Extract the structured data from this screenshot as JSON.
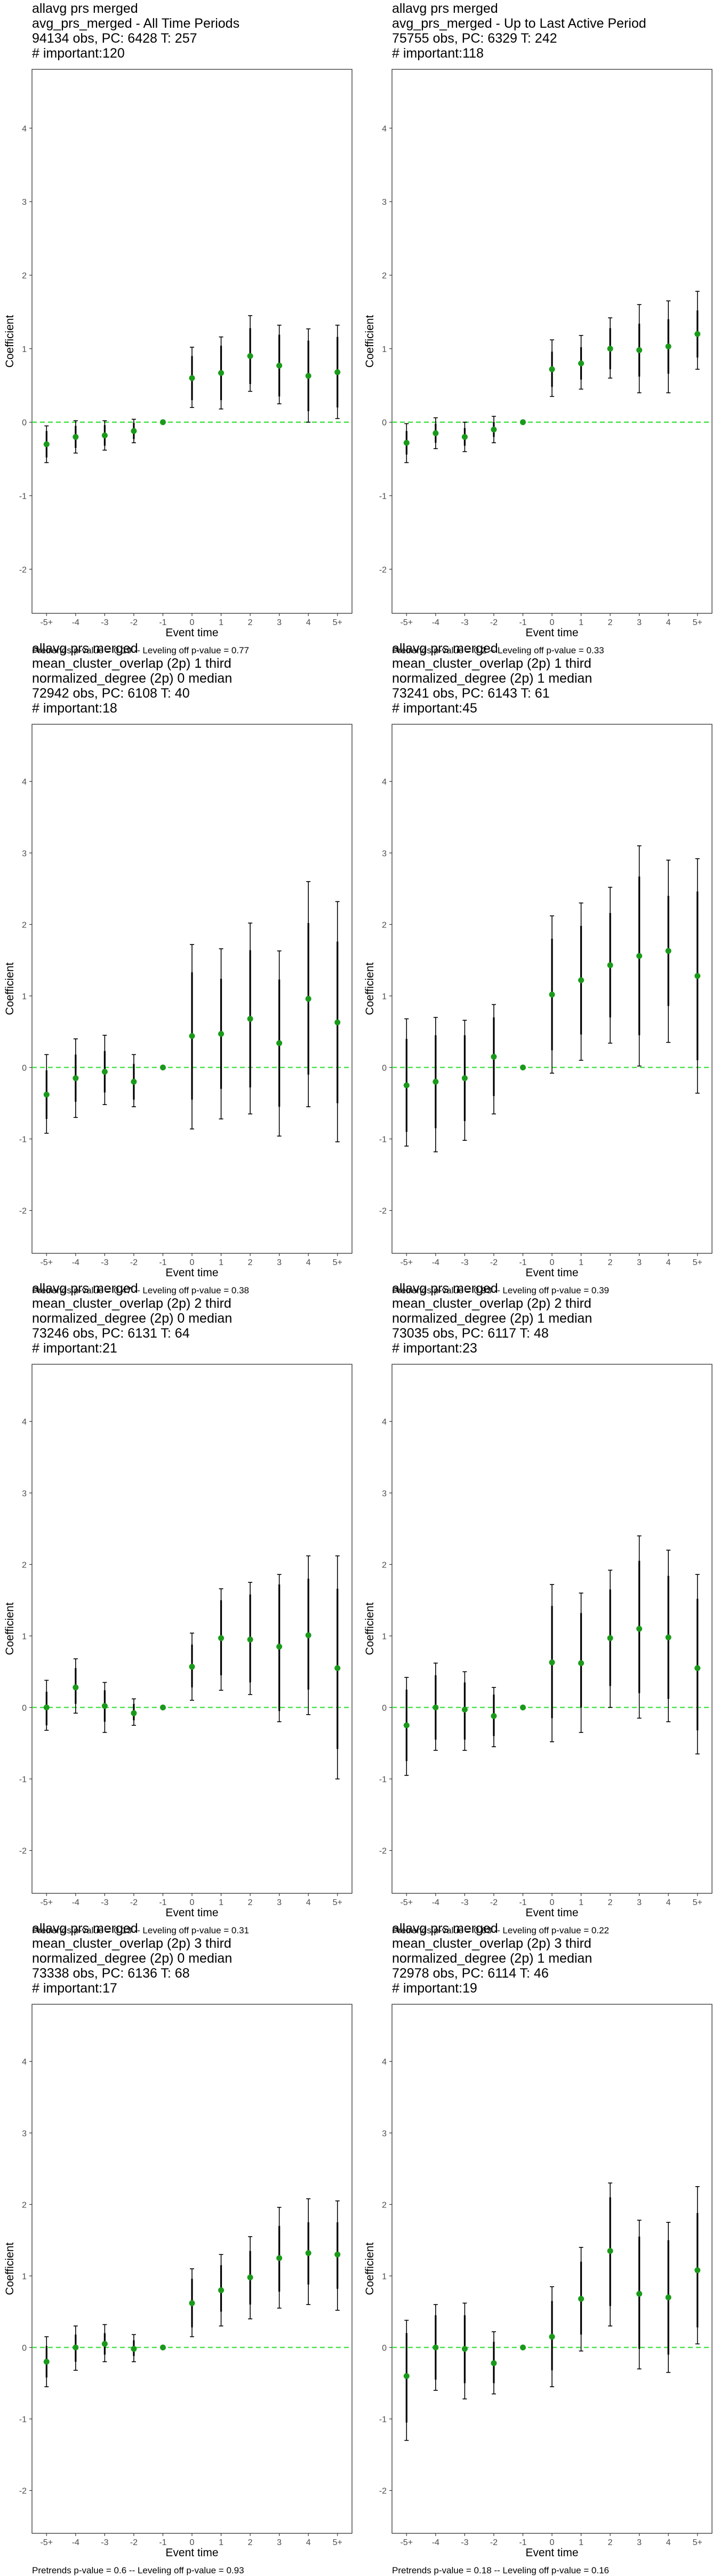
{
  "axis": {
    "xlabel": "Event time",
    "ylabel": "Coefficient",
    "categories": [
      "-5+",
      "-4",
      "-3",
      "-2",
      "-1",
      "0",
      "1",
      "2",
      "3",
      "4",
      "5+"
    ],
    "yticks": [
      -2,
      -1,
      0,
      1,
      2,
      3,
      4
    ],
    "ylim": [
      -2.6,
      4.8
    ]
  },
  "colors": {
    "point": "#1a9a1a",
    "reference_line": "#33dd33",
    "error_bar": "#000000",
    "panel_border": "#333333"
  },
  "chart_data": [
    {
      "type": "scatter",
      "title_lines": [
        "allavg prs merged",
        "avg_prs_merged - All Time Periods",
        "94134 obs, PC: 6428 T: 257",
        "# important:120"
      ],
      "footer": "Pretrends p-value = 0.19 -- Leveling off p-value = 0.77",
      "x": [
        "-5+",
        "-4",
        "-3",
        "-2",
        "-1",
        "0",
        "1",
        "2",
        "3",
        "4",
        "5+"
      ],
      "values": [
        -0.3,
        -0.2,
        -0.18,
        -0.12,
        0.0,
        0.6,
        0.67,
        0.9,
        0.77,
        0.63,
        0.68
      ],
      "ci_inner": [
        [
          -0.48,
          -0.12
        ],
        [
          -0.35,
          -0.05
        ],
        [
          -0.32,
          -0.04
        ],
        [
          -0.23,
          -0.01
        ],
        [
          0.0,
          0.0
        ],
        [
          0.3,
          0.9
        ],
        [
          0.3,
          1.04
        ],
        [
          0.52,
          1.28
        ],
        [
          0.35,
          1.19
        ],
        [
          0.15,
          1.11
        ],
        [
          0.2,
          1.16
        ]
      ],
      "ci_outer": [
        [
          -0.55,
          -0.05
        ],
        [
          -0.42,
          0.02
        ],
        [
          -0.38,
          0.02
        ],
        [
          -0.28,
          0.04
        ],
        [
          0.0,
          0.0
        ],
        [
          0.2,
          1.02
        ],
        [
          0.18,
          1.16
        ],
        [
          0.42,
          1.45
        ],
        [
          0.25,
          1.32
        ],
        [
          0.0,
          1.27
        ],
        [
          0.05,
          1.32
        ]
      ]
    },
    {
      "type": "scatter",
      "title_lines": [
        "allavg prs merged",
        "avg_prs_merged - Up to Last Active Period",
        "75755 obs, PC: 6329 T: 242",
        "# important:118"
      ],
      "footer": "Pretrends p-value = 0.2 -- Leveling off p-value = 0.33",
      "x": [
        "-5+",
        "-4",
        "-3",
        "-2",
        "-1",
        "0",
        "1",
        "2",
        "3",
        "4",
        "5+"
      ],
      "values": [
        -0.28,
        -0.15,
        -0.2,
        -0.1,
        0.0,
        0.72,
        0.8,
        1.0,
        0.98,
        1.03,
        1.2
      ],
      "ci_inner": [
        [
          -0.44,
          -0.12
        ],
        [
          -0.28,
          -0.02
        ],
        [
          -0.32,
          -0.08
        ],
        [
          -0.2,
          0.0
        ],
        [
          0.0,
          0.0
        ],
        [
          0.48,
          0.96
        ],
        [
          0.58,
          1.02
        ],
        [
          0.72,
          1.28
        ],
        [
          0.62,
          1.34
        ],
        [
          0.66,
          1.4
        ],
        [
          0.88,
          1.52
        ]
      ],
      "ci_outer": [
        [
          -0.55,
          -0.02
        ],
        [
          -0.36,
          0.06
        ],
        [
          -0.4,
          0.0
        ],
        [
          -0.28,
          0.08
        ],
        [
          0.0,
          0.0
        ],
        [
          0.35,
          1.12
        ],
        [
          0.45,
          1.18
        ],
        [
          0.6,
          1.42
        ],
        [
          0.4,
          1.6
        ],
        [
          0.4,
          1.65
        ],
        [
          0.72,
          1.78
        ]
      ]
    },
    {
      "type": "scatter",
      "title_lines": [
        "allavg prs merged",
        "mean_cluster_overlap (2p) 1 third",
        "normalized_degree (2p) 0 median",
        "72942 obs, PC: 6108 T: 40",
        "# important:18"
      ],
      "footer": "Pretrends p-value = 0.47 -- Leveling off p-value = 0.38",
      "x": [
        "-5+",
        "-4",
        "-3",
        "-2",
        "-1",
        "0",
        "1",
        "2",
        "3",
        "4",
        "5+"
      ],
      "values": [
        -0.38,
        -0.15,
        -0.06,
        -0.2,
        0.0,
        0.44,
        0.47,
        0.68,
        0.34,
        0.96,
        0.63
      ],
      "ci_inner": [
        [
          -0.72,
          -0.04
        ],
        [
          -0.48,
          0.18
        ],
        [
          -0.35,
          0.23
        ],
        [
          -0.45,
          0.05
        ],
        [
          0.0,
          0.0
        ],
        [
          -0.45,
          1.33
        ],
        [
          -0.3,
          1.24
        ],
        [
          -0.28,
          1.64
        ],
        [
          -0.55,
          1.23
        ],
        [
          -0.1,
          2.02
        ],
        [
          -0.5,
          1.76
        ]
      ],
      "ci_outer": [
        [
          -0.92,
          0.18
        ],
        [
          -0.7,
          0.4
        ],
        [
          -0.52,
          0.45
        ],
        [
          -0.55,
          0.18
        ],
        [
          0.0,
          0.0
        ],
        [
          -0.86,
          1.72
        ],
        [
          -0.72,
          1.66
        ],
        [
          -0.65,
          2.02
        ],
        [
          -0.96,
          1.63
        ],
        [
          -0.55,
          2.6
        ],
        [
          -1.04,
          2.32
        ]
      ]
    },
    {
      "type": "scatter",
      "title_lines": [
        "allavg prs merged",
        "mean_cluster_overlap (2p) 1 third",
        "normalized_degree (2p) 1 median",
        "73241 obs, PC: 6143 T: 61",
        "# important:45"
      ],
      "footer": "Pretrends p-value = 0.93 -- Leveling off p-value = 0.39",
      "x": [
        "-5+",
        "-4",
        "-3",
        "-2",
        "-1",
        "0",
        "1",
        "2",
        "3",
        "4",
        "5+"
      ],
      "values": [
        -0.25,
        -0.2,
        -0.15,
        0.15,
        0.0,
        1.02,
        1.22,
        1.43,
        1.56,
        1.63,
        1.28
      ],
      "ci_inner": [
        [
          -0.9,
          0.4
        ],
        [
          -0.85,
          0.45
        ],
        [
          -0.75,
          0.45
        ],
        [
          -0.4,
          0.7
        ],
        [
          0.0,
          0.0
        ],
        [
          0.24,
          1.8
        ],
        [
          0.46,
          1.98
        ],
        [
          0.7,
          2.16
        ],
        [
          0.45,
          2.67
        ],
        [
          0.86,
          2.4
        ],
        [
          0.1,
          2.46
        ]
      ],
      "ci_outer": [
        [
          -1.1,
          0.68
        ],
        [
          -1.18,
          0.7
        ],
        [
          -1.02,
          0.66
        ],
        [
          -0.65,
          0.88
        ],
        [
          0.0,
          0.0
        ],
        [
          -0.08,
          2.12
        ],
        [
          0.1,
          2.3
        ],
        [
          0.34,
          2.52
        ],
        [
          0.02,
          3.1
        ],
        [
          0.35,
          2.9
        ],
        [
          -0.36,
          2.92
        ]
      ]
    },
    {
      "type": "scatter",
      "title_lines": [
        "allavg prs merged",
        "mean_cluster_overlap (2p) 2 third",
        "normalized_degree (2p) 0 median",
        "73246 obs, PC: 6131 T: 64",
        "# important:21"
      ],
      "footer": "Pretrends p-value = 0.13 -- Leveling off p-value = 0.31",
      "x": [
        "-5+",
        "-4",
        "-3",
        "-2",
        "-1",
        "0",
        "1",
        "2",
        "3",
        "4",
        "5+"
      ],
      "values": [
        0.0,
        0.28,
        0.02,
        -0.08,
        0.0,
        0.57,
        0.97,
        0.95,
        0.85,
        1.01,
        0.55
      ],
      "ci_inner": [
        [
          -0.25,
          0.22
        ],
        [
          0.05,
          0.55
        ],
        [
          -0.2,
          0.24
        ],
        [
          -0.18,
          0.05
        ],
        [
          0.0,
          0.0
        ],
        [
          0.28,
          0.88
        ],
        [
          0.45,
          1.5
        ],
        [
          0.35,
          1.58
        ],
        [
          -0.05,
          1.72
        ],
        [
          0.25,
          1.8
        ],
        [
          -0.58,
          1.66
        ]
      ],
      "ci_outer": [
        [
          -0.32,
          0.38
        ],
        [
          -0.08,
          0.68
        ],
        [
          -0.35,
          0.35
        ],
        [
          -0.25,
          0.12
        ],
        [
          0.0,
          0.0
        ],
        [
          0.1,
          1.04
        ],
        [
          0.24,
          1.66
        ],
        [
          0.18,
          1.75
        ],
        [
          -0.2,
          1.86
        ],
        [
          -0.1,
          2.12
        ],
        [
          -1.0,
          2.12
        ]
      ]
    },
    {
      "type": "scatter",
      "title_lines": [
        "allavg prs merged",
        "mean_cluster_overlap (2p) 2 third",
        "normalized_degree (2p) 1 median",
        "73035 obs, PC: 6117 T: 48",
        "# important:23"
      ],
      "footer": "Pretrends p-value = 0.63 -- Leveling off p-value = 0.22",
      "x": [
        "-5+",
        "-4",
        "-3",
        "-2",
        "-1",
        "0",
        "1",
        "2",
        "3",
        "4",
        "5+"
      ],
      "values": [
        -0.25,
        0.0,
        -0.03,
        -0.12,
        0.0,
        0.63,
        0.62,
        0.97,
        1.1,
        0.98,
        0.55
      ],
      "ci_inner": [
        [
          -0.75,
          0.25
        ],
        [
          -0.45,
          0.45
        ],
        [
          -0.45,
          0.35
        ],
        [
          -0.4,
          0.18
        ],
        [
          0.0,
          0.0
        ],
        [
          -0.15,
          1.42
        ],
        [
          0.0,
          1.32
        ],
        [
          0.3,
          1.65
        ],
        [
          0.2,
          2.05
        ],
        [
          0.12,
          1.84
        ],
        [
          -0.32,
          1.52
        ]
      ],
      "ci_outer": [
        [
          -0.95,
          0.42
        ],
        [
          -0.6,
          0.62
        ],
        [
          -0.6,
          0.5
        ],
        [
          -0.55,
          0.28
        ],
        [
          0.0,
          0.0
        ],
        [
          -0.48,
          1.72
        ],
        [
          -0.35,
          1.6
        ],
        [
          0.0,
          1.92
        ],
        [
          -0.15,
          2.4
        ],
        [
          -0.2,
          2.2
        ],
        [
          -0.65,
          1.86
        ]
      ]
    },
    {
      "type": "scatter",
      "title_lines": [
        "allavg prs merged",
        "mean_cluster_overlap (2p) 3 third",
        "normalized_degree (2p) 0 median",
        "73338 obs, PC: 6136 T: 68",
        "# important:17"
      ],
      "footer": "Pretrends p-value = 0.6 -- Leveling off p-value = 0.93",
      "x": [
        "-5+",
        "-4",
        "-3",
        "-2",
        "-1",
        "0",
        "1",
        "2",
        "3",
        "4",
        "5+"
      ],
      "values": [
        -0.2,
        0.0,
        0.05,
        -0.02,
        0.0,
        0.62,
        0.8,
        0.98,
        1.25,
        1.32,
        1.3
      ],
      "ci_inner": [
        [
          -0.42,
          0.02
        ],
        [
          -0.2,
          0.18
        ],
        [
          -0.1,
          0.2
        ],
        [
          -0.12,
          0.1
        ],
        [
          0.0,
          0.0
        ],
        [
          0.28,
          0.96
        ],
        [
          0.5,
          1.15
        ],
        [
          0.6,
          1.35
        ],
        [
          0.78,
          1.7
        ],
        [
          0.88,
          1.75
        ],
        [
          0.82,
          1.75
        ]
      ],
      "ci_outer": [
        [
          -0.55,
          0.15
        ],
        [
          -0.32,
          0.3
        ],
        [
          -0.2,
          0.32
        ],
        [
          -0.2,
          0.18
        ],
        [
          0.0,
          0.0
        ],
        [
          0.15,
          1.1
        ],
        [
          0.3,
          1.3
        ],
        [
          0.4,
          1.55
        ],
        [
          0.55,
          1.96
        ],
        [
          0.6,
          2.08
        ],
        [
          0.52,
          2.05
        ]
      ]
    },
    {
      "type": "scatter",
      "title_lines": [
        "allavg prs merged",
        "mean_cluster_overlap (2p) 3 third",
        "normalized_degree (2p) 1 median",
        "72978 obs, PC: 6114 T: 46",
        "# important:19"
      ],
      "footer": "Pretrends p-value = 0.18 -- Leveling off p-value = 0.16",
      "x": [
        "-5+",
        "-4",
        "-3",
        "-2",
        "-1",
        "0",
        "1",
        "2",
        "3",
        "4",
        "5+"
      ],
      "values": [
        -0.4,
        0.0,
        -0.02,
        -0.22,
        0.0,
        0.15,
        0.68,
        1.35,
        0.75,
        0.7,
        1.08
      ],
      "ci_inner": [
        [
          -1.05,
          0.2
        ],
        [
          -0.45,
          0.45
        ],
        [
          -0.5,
          0.45
        ],
        [
          -0.5,
          0.08
        ],
        [
          0.0,
          0.0
        ],
        [
          -0.32,
          0.65
        ],
        [
          0.18,
          1.2
        ],
        [
          0.58,
          2.1
        ],
        [
          -0.02,
          1.55
        ],
        [
          -0.1,
          1.5
        ],
        [
          0.28,
          1.88
        ]
      ],
      "ci_outer": [
        [
          -1.3,
          0.38
        ],
        [
          -0.6,
          0.6
        ],
        [
          -0.72,
          0.62
        ],
        [
          -0.65,
          0.22
        ],
        [
          0.0,
          0.0
        ],
        [
          -0.55,
          0.85
        ],
        [
          -0.05,
          1.4
        ],
        [
          0.3,
          2.3
        ],
        [
          -0.3,
          1.78
        ],
        [
          -0.35,
          1.75
        ],
        [
          0.05,
          2.25
        ]
      ]
    }
  ]
}
